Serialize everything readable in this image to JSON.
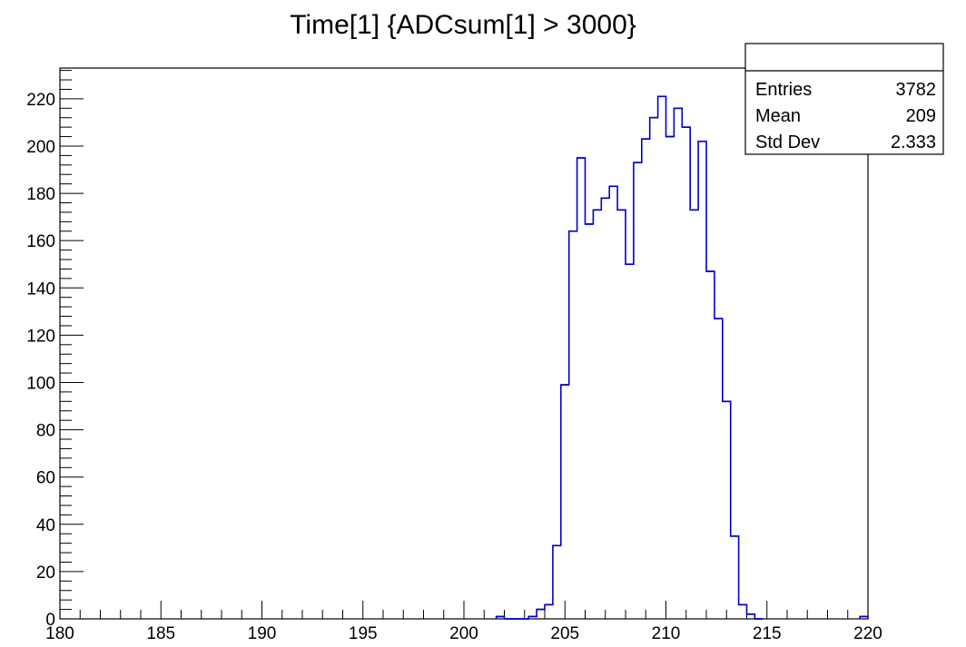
{
  "chart_data": {
    "type": "histogram",
    "title": "Time[1] {ADCsum[1] > 3000}",
    "xlabel": "",
    "ylabel": "",
    "xlim": [
      180,
      220
    ],
    "ylim": [
      0,
      233
    ],
    "bin_width": 0.4,
    "x_ticks": [
      "180",
      "185",
      "190",
      "195",
      "200",
      "205",
      "210",
      "215",
      "220"
    ],
    "y_ticks": [
      "0",
      "20",
      "40",
      "60",
      "80",
      "100",
      "120",
      "140",
      "160",
      "180",
      "200",
      "220"
    ],
    "grid": false,
    "legend": "none",
    "line_color": "#0000cc",
    "bins": [
      {
        "x_low": 201.6,
        "value": 1
      },
      {
        "x_low": 202.0,
        "value": 0
      },
      {
        "x_low": 202.4,
        "value": 0
      },
      {
        "x_low": 202.8,
        "value": 0
      },
      {
        "x_low": 203.2,
        "value": 1
      },
      {
        "x_low": 203.6,
        "value": 4
      },
      {
        "x_low": 204.0,
        "value": 6
      },
      {
        "x_low": 204.4,
        "value": 31
      },
      {
        "x_low": 204.8,
        "value": 99
      },
      {
        "x_low": 205.2,
        "value": 164
      },
      {
        "x_low": 205.6,
        "value": 195
      },
      {
        "x_low": 206.0,
        "value": 167
      },
      {
        "x_low": 206.4,
        "value": 173
      },
      {
        "x_low": 206.8,
        "value": 178
      },
      {
        "x_low": 207.2,
        "value": 183
      },
      {
        "x_low": 207.6,
        "value": 173
      },
      {
        "x_low": 208.0,
        "value": 150
      },
      {
        "x_low": 208.4,
        "value": 193
      },
      {
        "x_low": 208.8,
        "value": 203
      },
      {
        "x_low": 209.2,
        "value": 212
      },
      {
        "x_low": 209.6,
        "value": 221
      },
      {
        "x_low": 210.0,
        "value": 204
      },
      {
        "x_low": 210.4,
        "value": 216
      },
      {
        "x_low": 210.8,
        "value": 208
      },
      {
        "x_low": 211.2,
        "value": 173
      },
      {
        "x_low": 211.6,
        "value": 202
      },
      {
        "x_low": 212.0,
        "value": 147
      },
      {
        "x_low": 212.4,
        "value": 127
      },
      {
        "x_low": 212.8,
        "value": 92
      },
      {
        "x_low": 213.2,
        "value": 35
      },
      {
        "x_low": 213.6,
        "value": 6
      },
      {
        "x_low": 214.0,
        "value": 2
      },
      {
        "x_low": 214.4,
        "value": 0
      },
      {
        "x_low": 219.6,
        "value": 1
      }
    ],
    "stats": [
      {
        "label": "Entries",
        "value": "3782"
      },
      {
        "label": "Mean",
        "value": "209"
      },
      {
        "label": "Std Dev",
        "value": "2.333"
      }
    ]
  }
}
